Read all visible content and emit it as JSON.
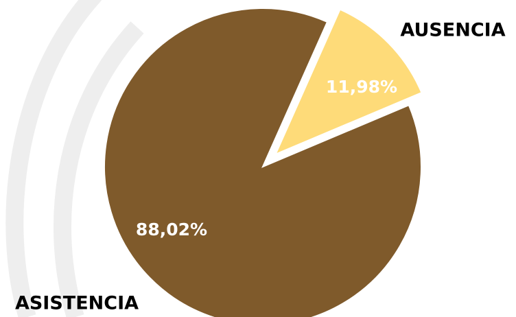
{
  "chart_data": {
    "type": "pie",
    "categories": [
      "AUSENCIA",
      "ASISTENCIA"
    ],
    "values": [
      11.98,
      88.02
    ],
    "value_labels": [
      "11,98%",
      "88,02%"
    ],
    "colors": [
      "#fedb79",
      "#7f5a2b"
    ]
  }
}
